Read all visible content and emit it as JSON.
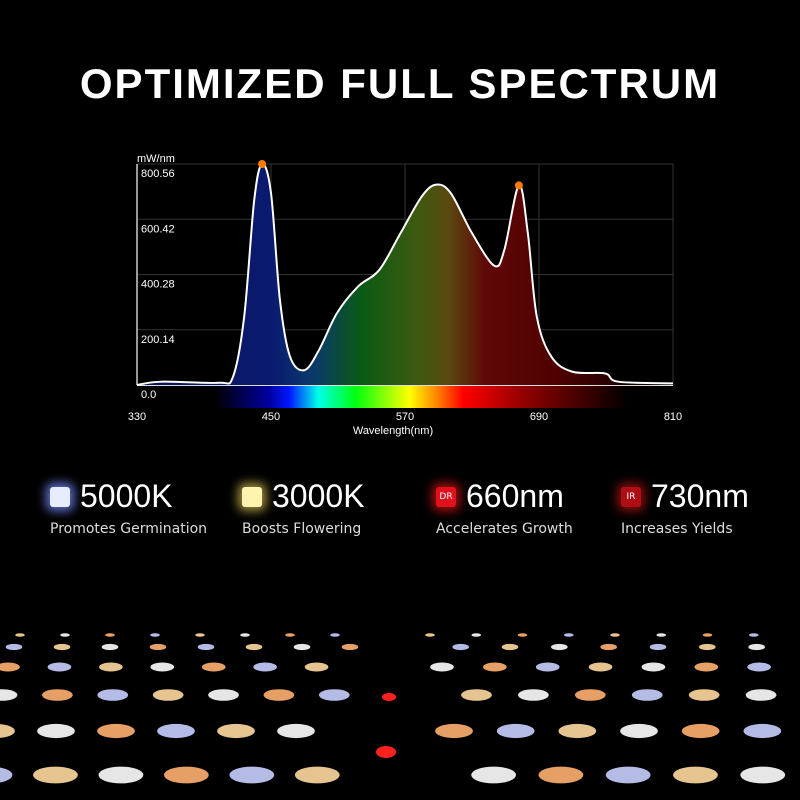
{
  "title": "OPTIMIZED FULL SPECTRUM",
  "chart_data": {
    "type": "area",
    "ylabel": "mW/nm",
    "xlabel": "Wavelength(nm)",
    "xlim": [
      330,
      810
    ],
    "ylim": [
      0,
      800.56
    ],
    "xticks": [
      330,
      450,
      570,
      690,
      810
    ],
    "yticks": [
      "0.0",
      "200.14",
      "400.28",
      "600.42",
      "800.56"
    ],
    "grid": true,
    "series": [
      {
        "x": [
          330,
          352,
          403,
          416,
          426,
          435,
          442,
          450,
          458,
          467,
          480,
          493,
          509,
          528,
          547,
          566,
          585,
          598,
          611,
          630,
          650,
          659,
          672,
          680,
          688,
          701,
          720,
          749,
          761,
          810
        ],
        "y": [
          0,
          12,
          8,
          30,
          248,
          671,
          800,
          695,
          308,
          103,
          54,
          127,
          260,
          357,
          417,
          550,
          683,
          726,
          695,
          550,
          432,
          490,
          723,
          550,
          248,
          103,
          48,
          42,
          12,
          6
        ]
      }
    ],
    "markers": [
      {
        "x": 442,
        "y": 800.56
      },
      {
        "x": 672,
        "y": 723
      }
    ],
    "marker_color": "#ff7a00",
    "line_color": "#ffffff",
    "spectrum_bar": [
      400,
      770
    ]
  },
  "features": [
    {
      "icon": "white-led-icon",
      "value": "5000K",
      "desc": "Promotes Germination",
      "color": "#e8ecff",
      "glow": "#6070d0",
      "chip": ""
    },
    {
      "icon": "warm-led-icon",
      "value": "3000K",
      "desc": "Boosts Flowering",
      "color": "#fff3b0",
      "glow": "#a09040",
      "chip": ""
    },
    {
      "icon": "deep-red-led-icon",
      "value": "660nm",
      "desc": "Accelerates Growth",
      "color": "#e0101c",
      "glow": "#a01010",
      "chip": "DR"
    },
    {
      "icon": "infrared-led-icon",
      "value": "730nm",
      "desc": "Increases Yields",
      "color": "#b00c14",
      "glow": "#801010",
      "chip": "IR"
    }
  ]
}
